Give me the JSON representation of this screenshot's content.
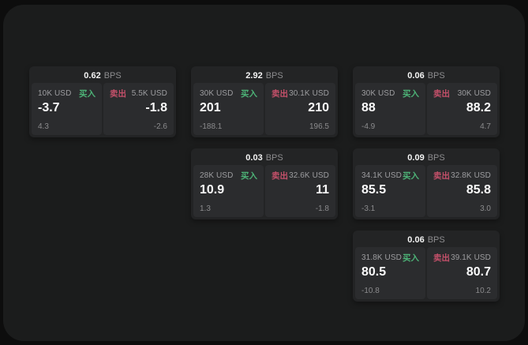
{
  "labels": {
    "bps": "BPS",
    "buy": "买入",
    "sell": "卖出"
  },
  "colors": {
    "buy_green": "#4db377",
    "sell_red": "#c4506a",
    "panel_bg": "#1b1c1c",
    "card_bg": "#232425",
    "cell_bg": "#2b2c2e"
  },
  "cards": [
    {
      "bps": "0.62",
      "buy": {
        "amount": "10K USD",
        "price": "-3.7",
        "change": "4.3"
      },
      "sell": {
        "amount": "5.5K USD",
        "price": "-1.8",
        "change": "-2.6"
      }
    },
    {
      "bps": "2.92",
      "buy": {
        "amount": "30K USD",
        "price": "201",
        "change": "-188.1"
      },
      "sell": {
        "amount": "30.1K USD",
        "price": "210",
        "change": "196.5"
      }
    },
    {
      "bps": "0.06",
      "buy": {
        "amount": "30K USD",
        "price": "88",
        "change": "-4.9"
      },
      "sell": {
        "amount": "30K USD",
        "price": "88.2",
        "change": "4.7"
      }
    },
    {
      "bps": "0.03",
      "buy": {
        "amount": "28K USD",
        "price": "10.9",
        "change": "1.3"
      },
      "sell": {
        "amount": "32.6K USD",
        "price": "11",
        "change": "-1.8"
      }
    },
    {
      "bps": "0.09",
      "buy": {
        "amount": "34.1K USD",
        "price": "85.5",
        "change": "-3.1"
      },
      "sell": {
        "amount": "32.8K USD",
        "price": "85.8",
        "change": "3.0"
      }
    },
    {
      "bps": "0.06",
      "buy": {
        "amount": "31.8K USD",
        "price": "80.5",
        "change": "-10.8"
      },
      "sell": {
        "amount": "39.1K USD",
        "price": "80.7",
        "change": "10.2"
      }
    }
  ]
}
